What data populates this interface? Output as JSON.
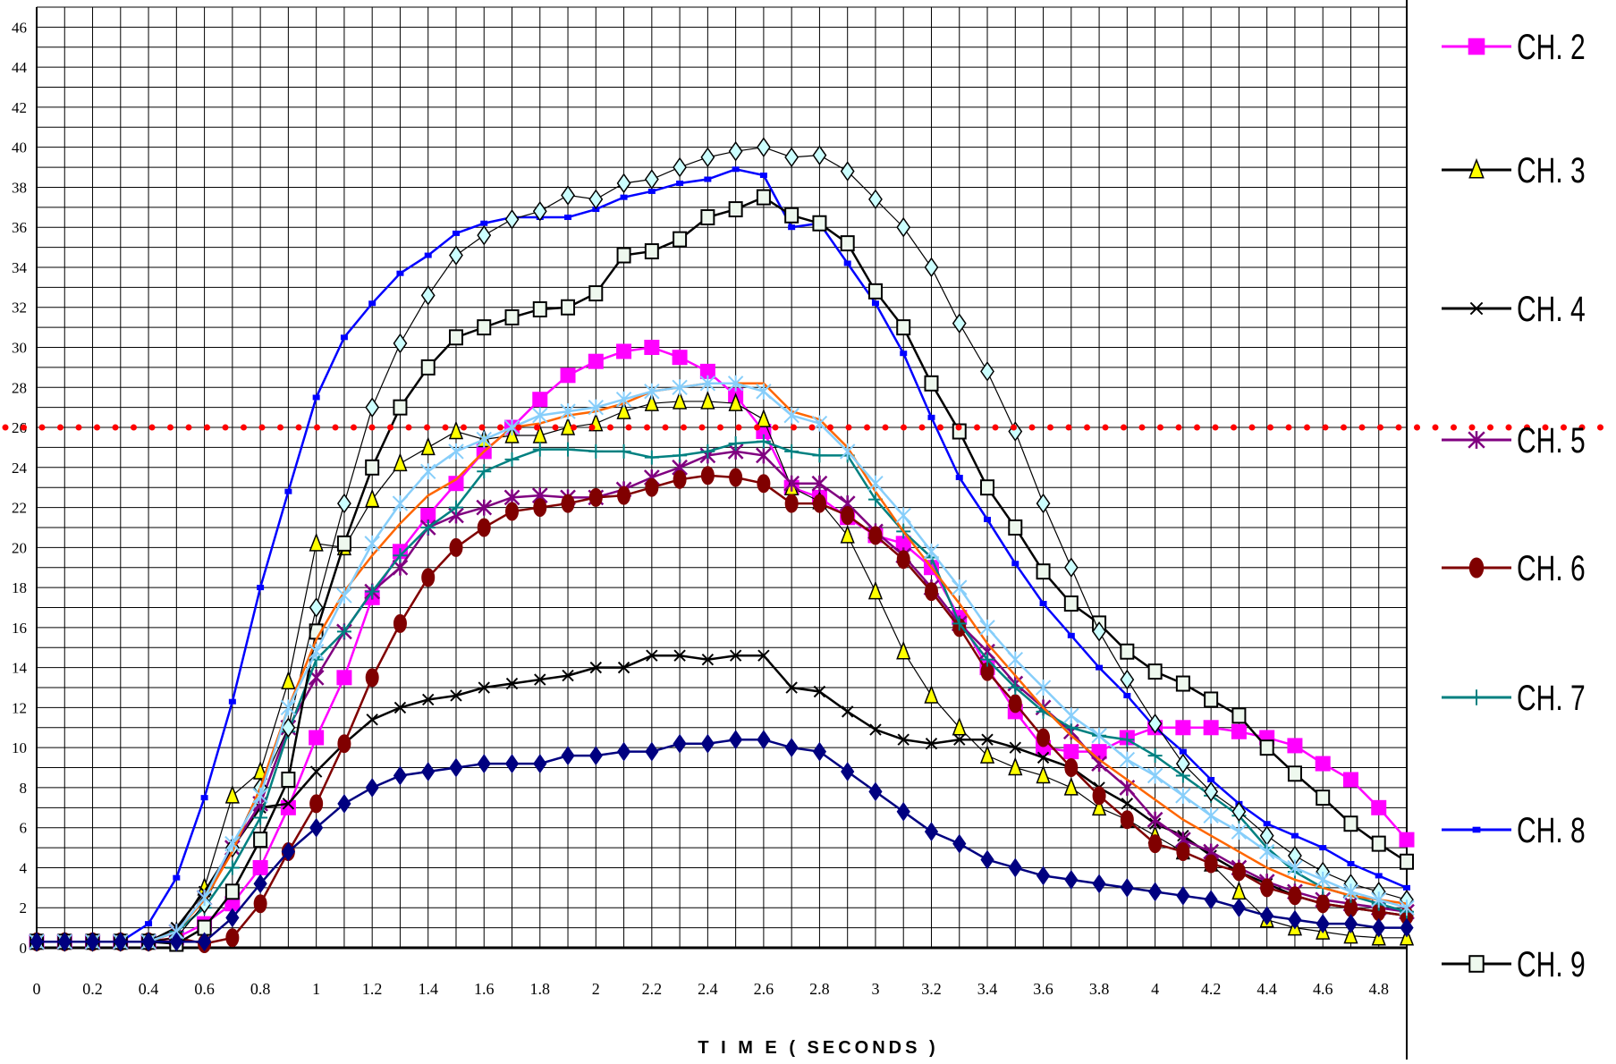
{
  "chart_data": {
    "type": "line",
    "title": "",
    "xlabel": "T I M E  ( SECONDS )",
    "ylabel": "",
    "xlim": [
      0,
      4.9
    ],
    "ylim": [
      0,
      47
    ],
    "x_ticks": [
      "0",
      "0.2",
      "0.4",
      "0.6",
      "0.8",
      "1",
      "1.2",
      "1.4",
      "1.6",
      "1.8",
      "2",
      "2.2",
      "2.4",
      "2.6",
      "2.8",
      "3",
      "3.2",
      "3.4",
      "3.6",
      "3.8",
      "4",
      "4.2",
      "4.4",
      "4.6",
      "4.8"
    ],
    "y_ticks": [
      "0",
      "2",
      "4",
      "6",
      "8",
      "10",
      "12",
      "14",
      "16",
      "18",
      "20",
      "22",
      "24",
      "26",
      "28",
      "30",
      "32",
      "34",
      "36",
      "38",
      "40",
      "42",
      "44",
      "46"
    ],
    "grid": true,
    "legend_position": "right",
    "reference_line": {
      "y": 26,
      "color": "#ff0000",
      "style": "dotted"
    },
    "x": [
      0,
      0.1,
      0.2,
      0.3,
      0.4,
      0.5,
      0.6,
      0.7,
      0.8,
      0.9,
      1.0,
      1.1,
      1.2,
      1.3,
      1.4,
      1.5,
      1.6,
      1.7,
      1.8,
      1.9,
      2.0,
      2.1,
      2.2,
      2.3,
      2.4,
      2.5,
      2.6,
      2.7,
      2.8,
      2.9,
      3.0,
      3.1,
      3.2,
      3.3,
      3.4,
      3.5,
      3.6,
      3.7,
      3.8,
      3.9,
      4.0,
      4.1,
      4.2,
      4.3,
      4.4,
      4.5,
      4.6,
      4.7,
      4.8,
      4.9
    ],
    "series": [
      {
        "name": "CH. 2",
        "color": "#ff00ff",
        "marker": "square-filled",
        "values": [
          0.3,
          0.3,
          0.3,
          0.3,
          0.3,
          0.5,
          1.2,
          2.2,
          4.0,
          7.0,
          10.5,
          13.5,
          17.5,
          19.8,
          21.6,
          23.2,
          24.8,
          26.0,
          27.4,
          28.6,
          29.3,
          29.8,
          30.0,
          29.5,
          28.8,
          27.6,
          25.8,
          23.0,
          22.5,
          21.5,
          20.6,
          20.2,
          19.0,
          16.5,
          14.0,
          11.8,
          10.0,
          9.8,
          9.8,
          10.5,
          11.0,
          11.0,
          11.0,
          10.8,
          10.5,
          10.1,
          9.2,
          8.4,
          7.0,
          5.4
        ]
      },
      {
        "name": "CH. 3",
        "color": "#000000",
        "marker": "triangle-yellow",
        "values": [
          0.3,
          0.3,
          0.3,
          0.3,
          0.3,
          0.8,
          3.0,
          7.6,
          8.8,
          13.3,
          20.2,
          20.0,
          22.4,
          24.2,
          25.0,
          25.8,
          25.4,
          25.6,
          25.6,
          26.0,
          26.2,
          26.8,
          27.2,
          27.3,
          27.3,
          27.2,
          26.4,
          23.0,
          22.3,
          20.6,
          17.8,
          14.8,
          12.6,
          11.0,
          9.6,
          9.0,
          8.6,
          8.0,
          7.0,
          6.4,
          5.6,
          4.8,
          4.2,
          2.8,
          1.4,
          1.0,
          0.8,
          0.6,
          0.5,
          0.5
        ]
      },
      {
        "name": "CH. 4",
        "color": "#000000",
        "marker": "x",
        "values": [
          0.3,
          0.3,
          0.3,
          0.3,
          0.3,
          1.0,
          2.8,
          5.0,
          7.0,
          7.2,
          8.8,
          10.2,
          11.4,
          12.0,
          12.4,
          12.6,
          13.0,
          13.2,
          13.4,
          13.6,
          14.0,
          14.0,
          14.6,
          14.6,
          14.4,
          14.6,
          14.6,
          13.0,
          12.8,
          11.8,
          10.9,
          10.4,
          10.2,
          10.4,
          10.4,
          10.0,
          9.5,
          9.0,
          8.0,
          7.2,
          6.2,
          5.6,
          4.6,
          3.8,
          3.2,
          2.6,
          2.2,
          2.0,
          1.8,
          1.6
        ]
      },
      {
        "name": "CH. 5",
        "color": "#800080",
        "marker": "asterisk",
        "values": [
          0.3,
          0.3,
          0.3,
          0.3,
          0.3,
          0.8,
          2.5,
          5.0,
          7.2,
          11.0,
          13.5,
          15.8,
          17.8,
          19.0,
          21.0,
          21.6,
          22.0,
          22.5,
          22.6,
          22.5,
          22.5,
          22.9,
          23.5,
          24.0,
          24.6,
          24.8,
          24.6,
          23.2,
          23.2,
          22.2,
          20.8,
          19.6,
          18.0,
          16.2,
          14.8,
          13.2,
          12.0,
          10.8,
          9.2,
          8.0,
          6.4,
          5.4,
          4.8,
          4.0,
          3.3,
          2.8,
          2.4,
          2.2,
          2.0,
          1.8
        ]
      },
      {
        "name": "CH. 6",
        "color": "#800000",
        "marker": "circle-filled",
        "values": [
          0.3,
          0.3,
          0.3,
          0.3,
          0.3,
          0.5,
          0.2,
          0.5,
          2.2,
          4.8,
          7.2,
          10.2,
          13.5,
          16.2,
          18.5,
          20.0,
          21.0,
          21.8,
          22.0,
          22.2,
          22.5,
          22.6,
          23.0,
          23.4,
          23.6,
          23.5,
          23.2,
          22.2,
          22.2,
          21.6,
          20.6,
          19.4,
          17.8,
          16.0,
          13.8,
          12.2,
          10.5,
          9.0,
          7.6,
          6.4,
          5.2,
          4.8,
          4.2,
          3.8,
          3.0,
          2.6,
          2.2,
          2.0,
          1.8,
          1.6
        ]
      },
      {
        "name": "CH. 7",
        "color": "#008080",
        "marker": "plus",
        "values": [
          0.3,
          0.3,
          0.3,
          0.3,
          0.3,
          0.8,
          2.0,
          4.0,
          6.5,
          10.8,
          14.4,
          15.8,
          17.8,
          19.6,
          21.0,
          22.0,
          23.8,
          24.4,
          24.9,
          24.9,
          24.8,
          24.8,
          24.5,
          24.6,
          24.8,
          25.2,
          25.3,
          24.8,
          24.6,
          24.6,
          22.4,
          20.8,
          19.5,
          16.2,
          14.4,
          13.0,
          11.8,
          11.0,
          10.6,
          10.4,
          9.6,
          8.6,
          7.6,
          6.6,
          5.0,
          3.8,
          3.0,
          2.6,
          2.2,
          1.8
        ]
      },
      {
        "name": "CH. 8",
        "color": "#0000ff",
        "marker": "dash",
        "values": [
          0.3,
          0.3,
          0.3,
          0.3,
          1.2,
          3.5,
          7.5,
          12.3,
          18.0,
          22.8,
          27.5,
          30.5,
          32.2,
          33.7,
          34.6,
          35.7,
          36.2,
          36.5,
          36.5,
          36.5,
          36.9,
          37.5,
          37.8,
          38.2,
          38.4,
          38.9,
          38.6,
          36.0,
          36.2,
          34.2,
          32.2,
          29.7,
          26.5,
          23.5,
          21.4,
          19.2,
          17.2,
          15.6,
          14.0,
          12.6,
          11.0,
          9.8,
          8.4,
          7.2,
          6.2,
          5.6,
          5.0,
          4.2,
          3.6,
          3.0
        ]
      },
      {
        "name": "CH. 9",
        "color": "#000000",
        "marker": "square-open",
        "values": [
          0.3,
          0.3,
          0.3,
          0.3,
          0.3,
          0.2,
          1.0,
          2.8,
          5.4,
          8.4,
          15.8,
          20.2,
          24.0,
          27.0,
          29.0,
          30.5,
          31.0,
          31.5,
          31.9,
          32.0,
          32.7,
          34.6,
          34.8,
          35.4,
          36.5,
          36.9,
          37.5,
          36.6,
          36.2,
          35.2,
          32.8,
          31.0,
          28.2,
          25.8,
          23.0,
          21.0,
          18.8,
          17.2,
          16.2,
          14.8,
          13.8,
          13.2,
          12.4,
          11.6,
          10.0,
          8.7,
          7.5,
          6.2,
          5.2,
          4.3
        ]
      },
      {
        "name": "",
        "color": "#000000",
        "marker": "diamond-cyan",
        "values": [
          0.3,
          0.3,
          0.3,
          0.3,
          0.3,
          0.5,
          2.2,
          5.0,
          8.0,
          11.0,
          17.0,
          22.2,
          27.0,
          30.2,
          32.6,
          34.6,
          35.6,
          36.4,
          36.8,
          37.6,
          37.4,
          38.2,
          38.4,
          39.0,
          39.5,
          39.8,
          40.0,
          39.5,
          39.6,
          38.8,
          37.4,
          36.0,
          34.0,
          31.2,
          28.8,
          25.8,
          22.2,
          19.0,
          15.8,
          13.4,
          11.2,
          9.2,
          7.8,
          6.8,
          5.6,
          4.6,
          3.8,
          3.2,
          2.8,
          2.4
        ]
      },
      {
        "name": "",
        "color": "#ff6600",
        "marker": "none",
        "values": [
          0.3,
          0.3,
          0.3,
          0.3,
          0.3,
          0.8,
          2.4,
          4.8,
          8.0,
          12.0,
          15.4,
          17.8,
          19.6,
          21.2,
          22.6,
          23.4,
          24.8,
          26.0,
          26.2,
          26.6,
          26.8,
          27.2,
          27.8,
          28.0,
          28.2,
          28.2,
          28.2,
          26.8,
          26.4,
          25.0,
          22.8,
          20.8,
          19.0,
          17.2,
          15.2,
          13.6,
          12.0,
          10.6,
          9.4,
          8.4,
          7.4,
          6.4,
          5.6,
          4.8,
          4.0,
          3.4,
          3.0,
          2.6,
          2.4,
          2.2
        ]
      },
      {
        "name": "",
        "color": "#87cefa",
        "marker": "star-lightblue",
        "values": [
          0.3,
          0.3,
          0.3,
          0.3,
          0.3,
          0.8,
          2.5,
          5.2,
          7.6,
          12.0,
          14.8,
          17.6,
          20.2,
          22.2,
          23.8,
          24.8,
          25.4,
          26.0,
          26.6,
          26.8,
          27.0,
          27.4,
          27.8,
          28.0,
          28.2,
          28.2,
          27.8,
          26.6,
          26.2,
          24.8,
          23.2,
          21.6,
          19.8,
          18.0,
          16.0,
          14.4,
          13.0,
          11.6,
          10.6,
          9.4,
          8.6,
          7.6,
          6.6,
          5.8,
          4.8,
          4.0,
          3.4,
          2.8,
          2.4,
          2.0
        ]
      },
      {
        "name": "",
        "color": "#000080",
        "marker": "diamond-navy",
        "values": [
          0.3,
          0.3,
          0.3,
          0.3,
          0.3,
          0.3,
          0.3,
          1.5,
          3.2,
          4.8,
          6.0,
          7.2,
          8.0,
          8.6,
          8.8,
          9.0,
          9.2,
          9.2,
          9.2,
          9.6,
          9.6,
          9.8,
          9.8,
          10.2,
          10.2,
          10.4,
          10.4,
          10.0,
          9.8,
          8.8,
          7.8,
          6.8,
          5.8,
          5.2,
          4.4,
          4.0,
          3.6,
          3.4,
          3.2,
          3.0,
          2.8,
          2.6,
          2.4,
          2.0,
          1.6,
          1.4,
          1.2,
          1.2,
          1.0,
          1.0
        ]
      }
    ]
  }
}
